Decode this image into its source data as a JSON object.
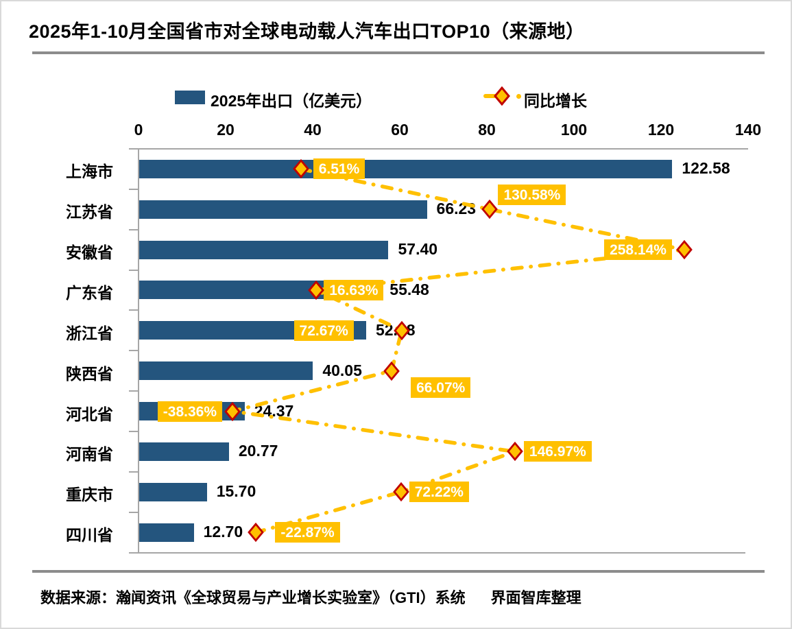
{
  "title": "2025年1-10月全国省市对全球电动载人汽车出口TOP10（来源地）",
  "legend": {
    "bar_label": "2025年出口（亿美元）",
    "line_label": "同比增长"
  },
  "footer": {
    "source": "数据来源：瀚闻资讯《全球贸易与产业增长实验室》（GTI）系统",
    "credit": "界面智库整理"
  },
  "colors": {
    "bar": "#24557E",
    "gold": "#FFC000",
    "marker_fill": "#FFC000",
    "marker_border": "#C00000",
    "growth_label_text": "#FFFFFF",
    "axis": "#A6A6A6",
    "rule": "#8C8C8C",
    "text": "#000000"
  },
  "chart_data": {
    "type": "bar",
    "subtype": "horizontal-bar-with-line",
    "title": "2025年1-10月全国省市对全球电动载人汽车出口TOP10（来源地）",
    "categories": [
      "上海市",
      "江苏省",
      "安徽省",
      "广东省",
      "浙江省",
      "陕西省",
      "河北省",
      "河南省",
      "重庆市",
      "四川省"
    ],
    "series": [
      {
        "name": "2025年出口（亿美元）",
        "type": "bar",
        "values": [
          122.58,
          66.23,
          57.4,
          55.48,
          52.28,
          40.05,
          24.37,
          20.77,
          15.7,
          12.7
        ],
        "labels": [
          "122.58",
          "66.23",
          "57.40",
          "55.48",
          "52.28",
          "40.05",
          "24.37",
          "20.77",
          "15.70",
          "12.70"
        ]
      },
      {
        "name": "同比增长",
        "type": "line",
        "unit": "%",
        "values": [
          6.51,
          130.58,
          258.14,
          16.63,
          72.67,
          66.07,
          -38.36,
          146.97,
          72.22,
          -22.87
        ],
        "labels": [
          "6.51%",
          "130.58%",
          "258.14%",
          "16.63%",
          "72.67%",
          "66.07%",
          "-38.36%",
          "146.97%",
          "72.22%",
          "-22.87%"
        ]
      }
    ],
    "x_axis": {
      "position": "top",
      "min": 0,
      "max": 140,
      "ticks": [
        "0",
        "20",
        "40",
        "60",
        "80",
        "100",
        "120",
        "140"
      ]
    },
    "secondary_x_axis": {
      "min": -100,
      "max": 300,
      "visible": false,
      "unit": "%"
    },
    "grid": false,
    "legend_position": "top"
  }
}
